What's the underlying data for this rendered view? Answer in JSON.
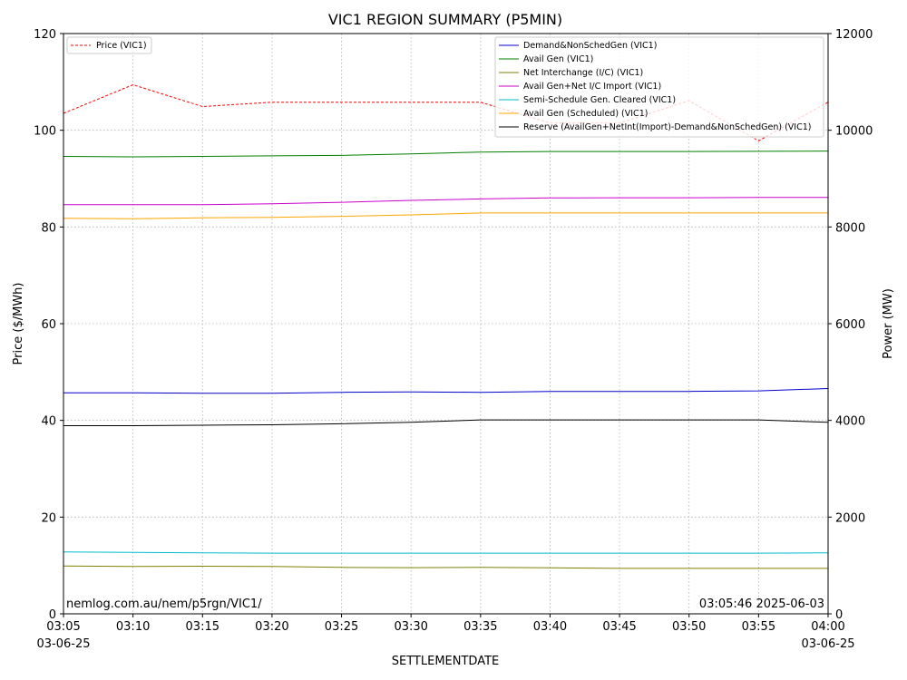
{
  "chart_data": {
    "type": "line",
    "title": "VIC1 REGION SUMMARY (P5MIN)",
    "xlabel": "SETTLEMENTDATE",
    "ylabel_left": "Price ($/MWh)",
    "ylabel_right": "Power (MW)",
    "ylim_left": [
      0,
      120
    ],
    "ylim_right": [
      0,
      12000
    ],
    "yticks_left": [
      "0",
      "20",
      "40",
      "60",
      "80",
      "100",
      "120"
    ],
    "yticks_right": [
      "0",
      "2000",
      "4000",
      "6000",
      "8000",
      "10000",
      "12000"
    ],
    "x": [
      "03:05",
      "03:10",
      "03:15",
      "03:20",
      "03:25",
      "03:30",
      "03:35",
      "03:40",
      "03:45",
      "03:50",
      "03:55",
      "04:00"
    ],
    "x_date_first": "03-06-25",
    "x_date_last": "03-06-25",
    "grid": true,
    "legend_left_placement": "top-left",
    "legend_right_placement": "top-right",
    "price_series": {
      "name": "Price (VIC1)",
      "color": "#ff0000",
      "style": "dashed",
      "axis": "left",
      "values": [
        103.5,
        109.4,
        104.9,
        105.8,
        105.8,
        105.8,
        105.8,
        101.5,
        101.5,
        106.1,
        97.8,
        105.8
      ]
    },
    "series": [
      {
        "name": "Demand&NonSchedGen (VIC1)",
        "color": "#0000cc",
        "axis": "right",
        "values": [
          4570,
          4570,
          4560,
          4560,
          4580,
          4590,
          4580,
          4600,
          4600,
          4600,
          4610,
          4660
        ]
      },
      {
        "name": "Avail Gen (VIC1)",
        "color": "#008000",
        "axis": "right",
        "values": [
          9460,
          9450,
          9460,
          9470,
          9480,
          9510,
          9550,
          9560,
          9560,
          9560,
          9565,
          9570
        ]
      },
      {
        "name": "Net Interchange (I/C) (VIC1)",
        "color": "#808000",
        "axis": "right",
        "values": [
          990,
          980,
          985,
          980,
          960,
          955,
          960,
          950,
          940,
          940,
          940,
          940
        ]
      },
      {
        "name": "Avail Gen+Net I/C Import (VIC1)",
        "color": "#cc00cc",
        "axis": "right",
        "values": [
          8460,
          8460,
          8460,
          8480,
          8510,
          8550,
          8580,
          8600,
          8605,
          8605,
          8610,
          8610
        ]
      },
      {
        "name": "Semi-Schedule Gen. Cleared (VIC1)",
        "color": "#00bbcc",
        "axis": "right",
        "values": [
          1280,
          1270,
          1260,
          1255,
          1255,
          1255,
          1255,
          1255,
          1255,
          1255,
          1255,
          1260
        ]
      },
      {
        "name": "Avail Gen (Scheduled) (VIC1)",
        "color": "#ffa500",
        "axis": "right",
        "values": [
          8180,
          8170,
          8190,
          8200,
          8220,
          8250,
          8290,
          8290,
          8290,
          8290,
          8290,
          8290
        ]
      },
      {
        "name": "Reserve (AvailGen+NetInt(Import)-Demand&NonSchedGen) (VIC1)",
        "color": "#000000",
        "axis": "right",
        "values": [
          3890,
          3890,
          3900,
          3910,
          3930,
          3960,
          4010,
          4010,
          4010,
          4010,
          4010,
          3960
        ]
      }
    ],
    "annotations": {
      "source": "nemlog.com.au/nem/p5rgn/VIC1/",
      "timestamp": "03:05:46 2025-06-03"
    }
  }
}
